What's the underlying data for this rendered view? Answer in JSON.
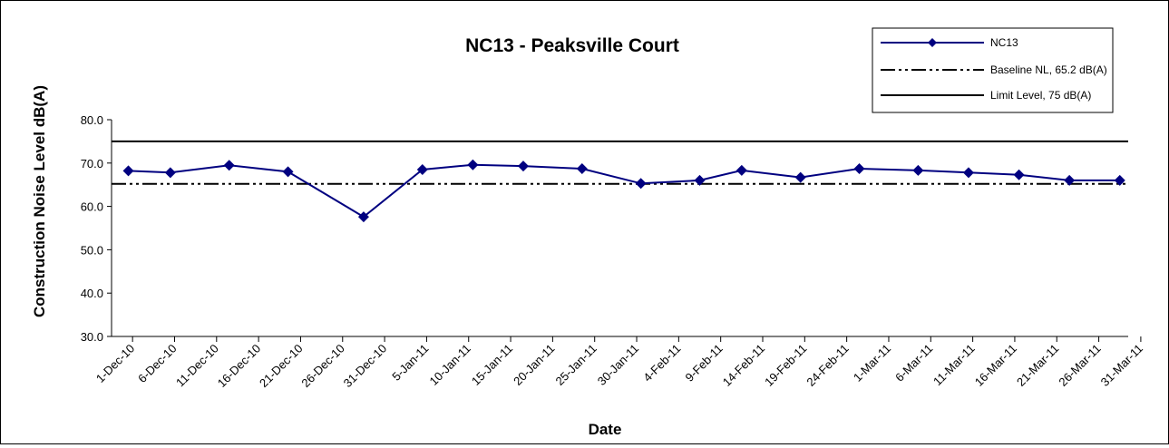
{
  "chart_data": {
    "type": "line",
    "title": "NC13 - Peaksville Court",
    "xlabel": "Date",
    "ylabel": "Construction Noise Level  dB(A)",
    "ylim": [
      30,
      80
    ],
    "yticks": [
      "30.0",
      "40.0",
      "50.0",
      "60.0",
      "70.0",
      "80.0"
    ],
    "xlim": [
      "2010-12-01",
      "2011-04-01"
    ],
    "xticks": [
      "1-Dec-10",
      "6-Dec-10",
      "11-Dec-10",
      "16-Dec-10",
      "21-Dec-10",
      "26-Dec-10",
      "31-Dec-10",
      "5-Jan-11",
      "10-Jan-11",
      "15-Jan-11",
      "20-Jan-11",
      "25-Jan-11",
      "30-Jan-11",
      "4-Feb-11",
      "9-Feb-11",
      "14-Feb-11",
      "19-Feb-11",
      "24-Feb-11",
      "1-Mar-11",
      "6-Mar-11",
      "11-Mar-11",
      "16-Mar-11",
      "21-Mar-11",
      "26-Mar-11",
      "31-Mar-11"
    ],
    "grid": false,
    "legend_position": "top-right",
    "series": [
      {
        "name": "NC13",
        "color": "#000080",
        "marker": "diamond",
        "x": [
          "2010-12-03",
          "2010-12-08",
          "2010-12-15",
          "2010-12-22",
          "2010-12-31",
          "2011-01-07",
          "2011-01-13",
          "2011-01-19",
          "2011-01-26",
          "2011-02-02",
          "2011-02-09",
          "2011-02-14",
          "2011-02-21",
          "2011-02-28",
          "2011-03-07",
          "2011-03-13",
          "2011-03-19",
          "2011-03-25",
          "2011-03-31"
        ],
        "y": [
          68.2,
          67.8,
          69.5,
          68.0,
          57.6,
          68.5,
          69.6,
          69.3,
          68.7,
          65.3,
          66.0,
          68.3,
          66.7,
          68.7,
          68.3,
          67.8,
          67.3,
          66.0,
          66.0
        ]
      },
      {
        "name": "Baseline NL, 65.2 dB(A)",
        "color": "#000000",
        "style": "dash-dot-dot",
        "constant": 65.2
      },
      {
        "name": "Limit Level, 75 dB(A)",
        "color": "#000000",
        "style": "solid",
        "constant": 75
      }
    ]
  }
}
